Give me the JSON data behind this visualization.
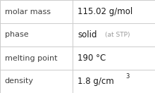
{
  "rows": [
    {
      "label": "molar mass",
      "value": "115.02 g/mol",
      "suffix": null,
      "superscript": null
    },
    {
      "label": "phase",
      "value": "solid",
      "suffix": " (at STP)",
      "superscript": null
    },
    {
      "label": "melting point",
      "value": "190 °C",
      "suffix": null,
      "superscript": null
    },
    {
      "label": "density",
      "value": "1.8 g/cm",
      "suffix": null,
      "superscript": "3"
    }
  ],
  "col_split": 0.47,
  "bg_color": "#ffffff",
  "border_color": "#cccccc",
  "label_color": "#404040",
  "value_color": "#1a1a1a",
  "suffix_color": "#999999",
  "label_fontsize": 8.0,
  "value_fontsize": 8.5,
  "suffix_fontsize": 6.5,
  "super_fontsize": 6.0,
  "font_family": "DejaVu Sans"
}
